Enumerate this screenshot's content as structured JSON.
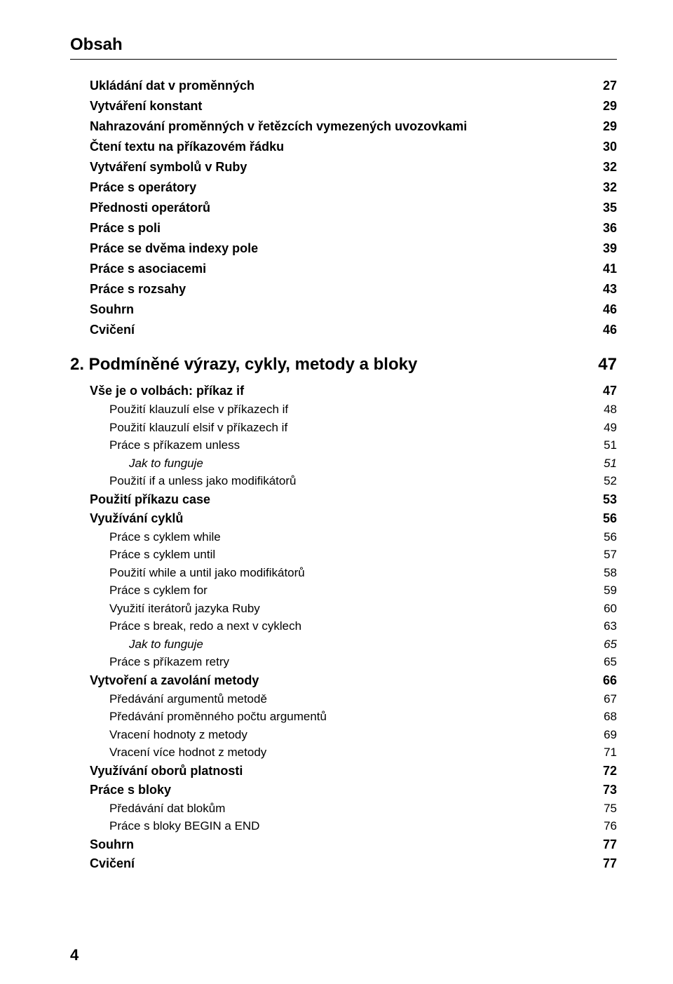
{
  "header": "Obsah",
  "footer_page": "4",
  "entries": [
    {
      "label": "Ukládání dat v proměnných",
      "page": "27",
      "level": "bold",
      "indent": 0
    },
    {
      "label": "Vytváření konstant",
      "page": "29",
      "level": "bold",
      "indent": 0
    },
    {
      "label": "Nahrazování proměnných v řetězcích vymezených uvozovkami",
      "page": "29",
      "level": "bold",
      "indent": 0
    },
    {
      "label": "Čtení textu na příkazovém řádku",
      "page": "30",
      "level": "bold",
      "indent": 0
    },
    {
      "label": "Vytváření symbolů v Ruby",
      "page": "32",
      "level": "bold",
      "indent": 0
    },
    {
      "label": "Práce s operátory",
      "page": "32",
      "level": "bold",
      "indent": 0
    },
    {
      "label": "Přednosti operátorů",
      "page": "35",
      "level": "bold",
      "indent": 0
    },
    {
      "label": "Práce s poli",
      "page": "36",
      "level": "bold",
      "indent": 0
    },
    {
      "label": "Práce se dvěma indexy pole",
      "page": "39",
      "level": "bold",
      "indent": 0
    },
    {
      "label": "Práce s asociacemi",
      "page": "41",
      "level": "bold",
      "indent": 0
    },
    {
      "label": "Práce s rozsahy",
      "page": "43",
      "level": "bold",
      "indent": 0
    },
    {
      "label": "Souhrn",
      "page": "46",
      "level": "bold",
      "indent": 0
    },
    {
      "label": "Cvičení",
      "page": "46",
      "level": "bold",
      "indent": 0
    },
    {
      "label": "2.  Podmíněné výrazy, cykly, metody a bloky",
      "page": "47",
      "level": "chapter",
      "indent": -1
    },
    {
      "label": "Vše je o volbách: příkaz if",
      "page": "47",
      "level": "sect",
      "indent": 0
    },
    {
      "label": "Použití klauzulí else v příkazech if",
      "page": "48",
      "level": "sub",
      "indent": 1
    },
    {
      "label": "Použití klauzulí elsif v příkazech if",
      "page": "49",
      "level": "sub",
      "indent": 1
    },
    {
      "label": "Práce s příkazem unless",
      "page": "51",
      "level": "sub",
      "indent": 1
    },
    {
      "label": "Jak to funguje",
      "page": "51",
      "level": "ital",
      "indent": 2
    },
    {
      "label": "Použití if a unless jako modifikátorů",
      "page": "52",
      "level": "sub",
      "indent": 1
    },
    {
      "label": "Použití příkazu case",
      "page": "53",
      "level": "sect",
      "indent": 0
    },
    {
      "label": "Využívání cyklů",
      "page": "56",
      "level": "sect",
      "indent": 0
    },
    {
      "label": "Práce s cyklem while",
      "page": "56",
      "level": "sub",
      "indent": 1
    },
    {
      "label": "Práce s cyklem until",
      "page": "57",
      "level": "sub",
      "indent": 1
    },
    {
      "label": "Použití while a until jako modifikátorů",
      "page": "58",
      "level": "sub",
      "indent": 1
    },
    {
      "label": "Práce s cyklem for",
      "page": "59",
      "level": "sub",
      "indent": 1
    },
    {
      "label": "Využití iterátorů jazyka Ruby",
      "page": "60",
      "level": "sub",
      "indent": 1
    },
    {
      "label": "Práce s break, redo a next v cyklech",
      "page": "63",
      "level": "sub",
      "indent": 1
    },
    {
      "label": "Jak to funguje",
      "page": "65",
      "level": "ital",
      "indent": 2
    },
    {
      "label": "Práce s příkazem retry",
      "page": "65",
      "level": "sub",
      "indent": 1
    },
    {
      "label": "Vytvoření a zavolání metody",
      "page": "66",
      "level": "sect",
      "indent": 0
    },
    {
      "label": "Předávání argumentů metodě",
      "page": "67",
      "level": "sub",
      "indent": 1
    },
    {
      "label": "Předávání proměnného počtu argumentů",
      "page": "68",
      "level": "sub",
      "indent": 1
    },
    {
      "label": "Vracení hodnoty z metody",
      "page": "69",
      "level": "sub",
      "indent": 1
    },
    {
      "label": "Vracení více hodnot z metody",
      "page": "71",
      "level": "sub",
      "indent": 1
    },
    {
      "label": "Využívání oborů platnosti",
      "page": "72",
      "level": "sect",
      "indent": 0
    },
    {
      "label": "Práce s bloky",
      "page": "73",
      "level": "sect",
      "indent": 0
    },
    {
      "label": "Předávání dat blokům",
      "page": "75",
      "level": "sub",
      "indent": 1
    },
    {
      "label": "Práce s bloky BEGIN a END",
      "page": "76",
      "level": "sub",
      "indent": 1
    },
    {
      "label": "Souhrn",
      "page": "77",
      "level": "sect",
      "indent": 0
    },
    {
      "label": "Cvičení",
      "page": "77",
      "level": "sect",
      "indent": 0
    }
  ]
}
